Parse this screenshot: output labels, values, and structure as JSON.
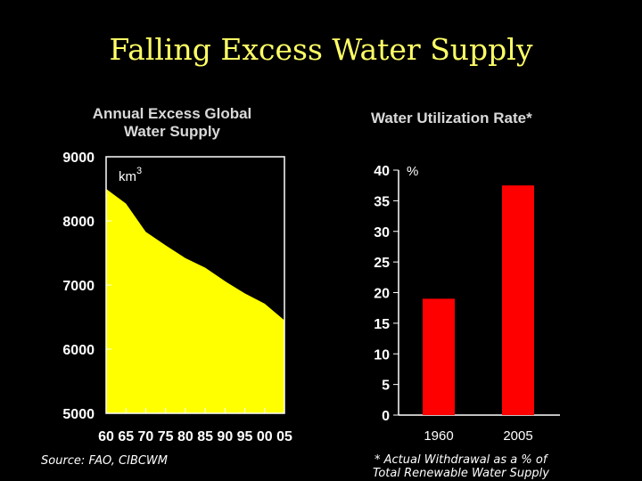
{
  "slide": {
    "title": "Falling Excess Water Supply",
    "source_note": "Source: FAO, CIBCWM",
    "footnote_line1": "* Actual Withdrawal as a % of",
    "footnote_line2": "Total Renewable Water Supply"
  },
  "chart_data": [
    {
      "type": "area",
      "title_line1": "Annual Excess Global",
      "title_line2": "Water Supply",
      "unit": "km",
      "unit_superscript": "3",
      "fill_color": "#ffff00",
      "x": [
        1960,
        1965,
        1970,
        1975,
        1980,
        1985,
        1990,
        1995,
        2000,
        2005
      ],
      "x_tick_labels": [
        "60",
        "65",
        "70",
        "75",
        "80",
        "85",
        "90",
        "95",
        "00",
        "05"
      ],
      "values": [
        8500,
        8270,
        7830,
        7620,
        7420,
        7270,
        7060,
        6870,
        6710,
        6450
      ],
      "y_ticks": [
        5000,
        6000,
        7000,
        8000,
        9000
      ],
      "ylim": [
        5000,
        9000
      ]
    },
    {
      "type": "bar",
      "title": "Water Utilization Rate*",
      "unit": "%",
      "bar_color": "#ff0000",
      "categories": [
        "1960",
        "2005"
      ],
      "values": [
        19,
        37.5
      ],
      "y_ticks": [
        0,
        5,
        10,
        15,
        20,
        25,
        30,
        35,
        40
      ],
      "ylim": [
        0,
        40
      ]
    }
  ]
}
